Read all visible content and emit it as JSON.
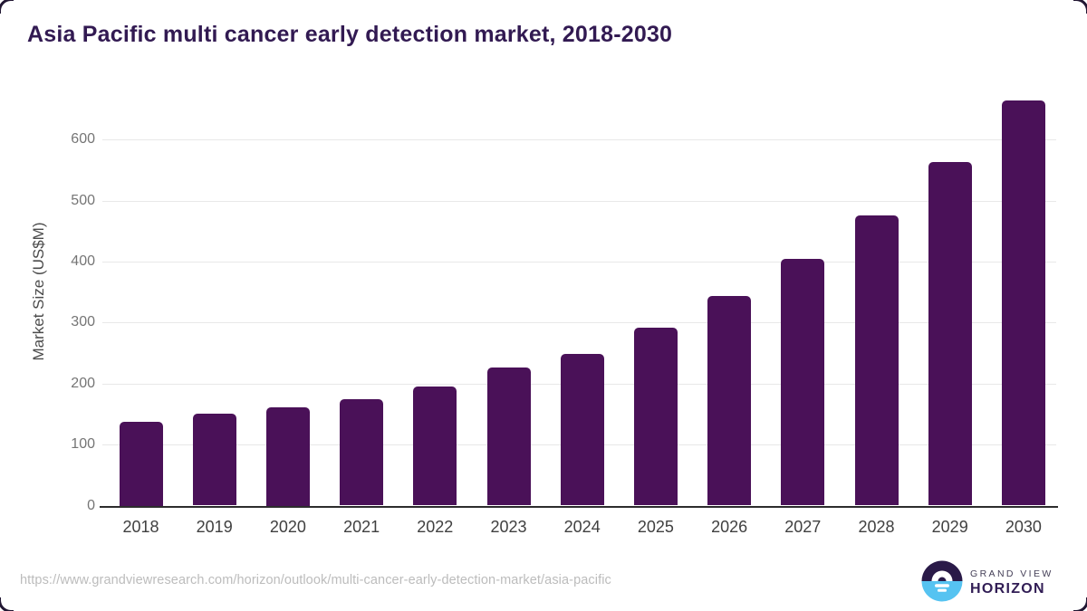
{
  "title": "Asia Pacific multi cancer early detection market, 2018-2030",
  "chart_data": {
    "type": "bar",
    "title": "Asia Pacific multi cancer early detection market, 2018-2030",
    "categories": [
      "2018",
      "2019",
      "2020",
      "2021",
      "2022",
      "2023",
      "2024",
      "2025",
      "2026",
      "2027",
      "2028",
      "2029",
      "2030"
    ],
    "values": [
      138,
      150,
      161,
      174,
      195,
      227,
      249,
      292,
      344,
      405,
      476,
      563,
      664
    ],
    "xlabel": "",
    "ylabel": "Market Size (US$M)",
    "ylim": [
      0,
      680
    ],
    "yticks": [
      0,
      100,
      200,
      300,
      400,
      500,
      600
    ],
    "grid": true,
    "legend": false,
    "bar_color": "#4a1158"
  },
  "footer": {
    "url": "https://www.grandviewresearch.com/horizon/outlook/multi-cancer-early-detection-market/asia-pacific"
  },
  "logo": {
    "brand_top": "GRAND VIEW",
    "brand_bottom": "HORIZON",
    "icon": "horizon-sunrise-icon",
    "colors": {
      "dark": "#2a1a48",
      "blue": "#56c3f1",
      "accent": "#ffffff"
    }
  },
  "colors": {
    "title": "#321a52",
    "bar": "#4a1158",
    "gridline": "#e8e8e8",
    "axis_line": "#2d2d2d",
    "y_tick_text": "#757575",
    "x_tick_text": "#404040",
    "url_text": "#bcbcbc"
  }
}
